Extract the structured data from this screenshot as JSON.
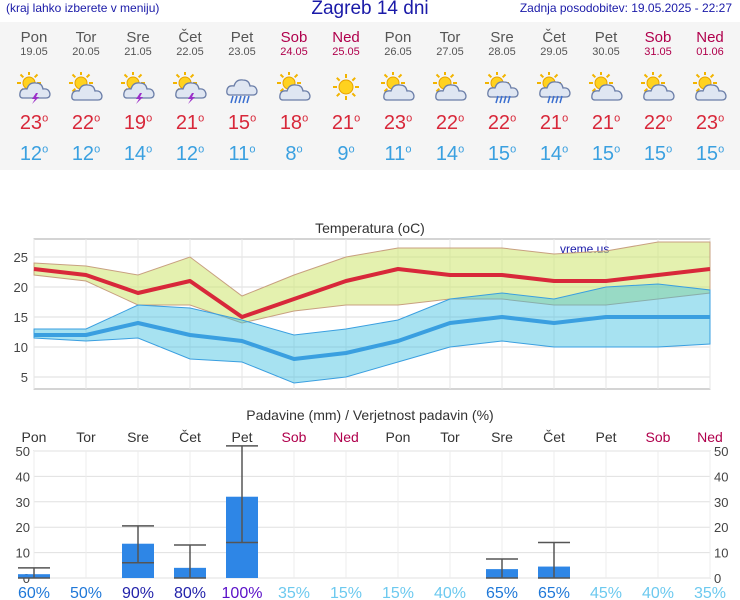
{
  "header": {
    "menu_hint": "(kraj lahko izberete v meniju)",
    "title": "Zagreb 14 dni",
    "updated": "Zadnja posodobitev: 19.05.2025 - 22:27"
  },
  "colors": {
    "max": "#d8283a",
    "min": "#3aa0e0",
    "weekend": "#b0004c",
    "bar": "#2e86e6"
  },
  "days": [
    {
      "name": "Pon",
      "date": "19.05",
      "weekend": false,
      "icon": "thunder-sun-icon"
    },
    {
      "name": "Tor",
      "date": "20.05",
      "weekend": false,
      "icon": "partly-cloudy-icon"
    },
    {
      "name": "Sre",
      "date": "21.05",
      "weekend": false,
      "icon": "thunder-sun-icon"
    },
    {
      "name": "Čet",
      "date": "22.05",
      "weekend": false,
      "icon": "thunder-sun-icon"
    },
    {
      "name": "Pet",
      "date": "23.05",
      "weekend": false,
      "icon": "rain-cloud-icon"
    },
    {
      "name": "Sob",
      "date": "24.05",
      "weekend": true,
      "icon": "partly-cloudy-icon"
    },
    {
      "name": "Ned",
      "date": "25.05",
      "weekend": true,
      "icon": "sun-icon"
    },
    {
      "name": "Pon",
      "date": "26.05",
      "weekend": false,
      "icon": "partly-cloudy-icon"
    },
    {
      "name": "Tor",
      "date": "27.05",
      "weekend": false,
      "icon": "partly-cloudy-icon"
    },
    {
      "name": "Sre",
      "date": "28.05",
      "weekend": false,
      "icon": "rain-sun-icon"
    },
    {
      "name": "Čet",
      "date": "29.05",
      "weekend": false,
      "icon": "rain-sun-icon"
    },
    {
      "name": "Pet",
      "date": "30.05",
      "weekend": false,
      "icon": "partly-cloudy-icon"
    },
    {
      "name": "Sob",
      "date": "31.05",
      "weekend": true,
      "icon": "partly-cloudy-icon"
    },
    {
      "name": "Ned",
      "date": "01.06",
      "weekend": true,
      "icon": "partly-cloudy-icon"
    }
  ],
  "chart_data": [
    {
      "type": "line",
      "title": "Temperatura (oC)",
      "watermark": "vreme.us",
      "ylim": [
        3,
        28
      ],
      "yticks": [
        5,
        10,
        15,
        20,
        25
      ],
      "grid": true,
      "x": [
        "19.05",
        "20.05",
        "21.05",
        "22.05",
        "23.05",
        "24.05",
        "25.05",
        "26.05",
        "27.05",
        "28.05",
        "29.05",
        "30.05",
        "31.05",
        "01.06"
      ],
      "series": [
        {
          "role": "max",
          "values": [
            23,
            22,
            19,
            21,
            15,
            18,
            21,
            23,
            22,
            22,
            21,
            21,
            22,
            23
          ],
          "range_low": [
            22,
            21,
            17,
            17,
            14,
            16,
            17,
            17,
            18,
            18,
            17,
            17,
            18,
            19
          ],
          "range_high": [
            24,
            23.5,
            22,
            25,
            18.5,
            22,
            25,
            26.5,
            26.5,
            26.5,
            25.5,
            26,
            27.5,
            27.5
          ]
        },
        {
          "role": "min",
          "values": [
            12,
            12,
            14,
            12,
            11,
            8,
            9,
            11,
            14,
            15,
            14,
            15,
            15,
            15
          ],
          "range_low": [
            11.5,
            11,
            11.5,
            8,
            7.5,
            4,
            5,
            7.5,
            10,
            11,
            10,
            10,
            10,
            10.5
          ],
          "range_high": [
            13,
            13,
            17,
            16.5,
            14.5,
            12,
            13,
            14.5,
            18,
            19,
            18,
            20,
            20.5,
            19.5
          ]
        }
      ]
    },
    {
      "type": "bar",
      "title": "Padavine (mm) / Verjetnost padavin (%)",
      "ylim": [
        0,
        50
      ],
      "yticks": [
        0,
        10,
        20,
        30,
        40,
        50
      ],
      "categories": [
        "Pon",
        "Tor",
        "Sre",
        "Čet",
        "Pet",
        "Sob",
        "Ned",
        "Pon",
        "Tor",
        "Sre",
        "Čet",
        "Pet",
        "Sob",
        "Ned"
      ],
      "weekend": [
        false,
        false,
        false,
        false,
        false,
        true,
        true,
        false,
        false,
        false,
        false,
        false,
        true,
        true
      ],
      "values": [
        1.5,
        0,
        13.5,
        4,
        32,
        0,
        0,
        0,
        0,
        3.5,
        4.5,
        0,
        0,
        0
      ],
      "err_low": [
        0,
        0,
        6,
        0,
        14,
        0,
        0,
        0,
        0,
        0,
        0,
        0,
        0,
        0
      ],
      "err_high": [
        4,
        0,
        20.5,
        13,
        52,
        0,
        0,
        0,
        0,
        7.5,
        14,
        0,
        0,
        0
      ],
      "probability_labels": [
        "60%",
        "50%",
        "90%",
        "80%",
        "100%",
        "35%",
        "15%",
        "15%",
        "40%",
        "65%",
        "65%",
        "45%",
        "40%",
        "35%"
      ],
      "probability_colors": [
        "#1f78d8",
        "#1f78d8",
        "#2222aa",
        "#2222aa",
        "#5a10c8",
        "#6cc9ef",
        "#6cc9ef",
        "#6cc9ef",
        "#6cc9ef",
        "#1f78d8",
        "#1f78d8",
        "#6cc9ef",
        "#6cc9ef",
        "#6cc9ef"
      ]
    }
  ]
}
